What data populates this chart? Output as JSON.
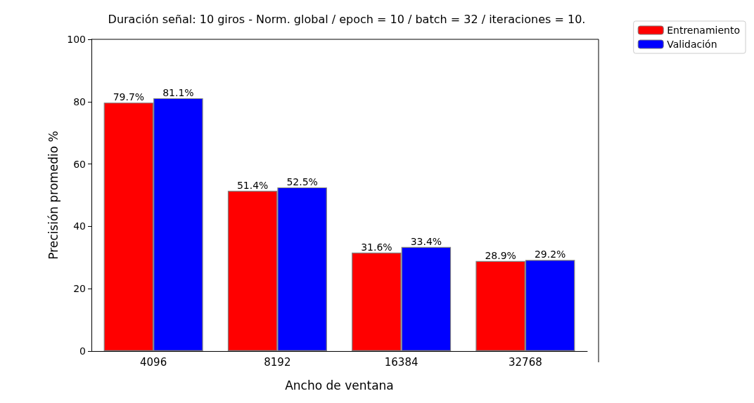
{
  "chart_data": {
    "type": "bar",
    "title": "Duración señal: 10 giros - Norm. global / epoch = 10 / batch = 32 / iteraciones = 10.",
    "xlabel": "Ancho de ventana",
    "ylabel": "Precisión promedio %",
    "categories": [
      "4096",
      "8192",
      "16384",
      "32768"
    ],
    "series": [
      {
        "name": "Entrenamiento",
        "color": "#ff0000",
        "values": [
          79.7,
          51.4,
          31.6,
          28.9
        ],
        "value_labels": [
          "79.7%",
          "51.4%",
          "31.6%",
          "28.9%"
        ]
      },
      {
        "name": "Validación",
        "color": "#0000ff",
        "values": [
          81.1,
          52.5,
          33.4,
          29.2
        ],
        "value_labels": [
          "81.1%",
          "52.5%",
          "33.4%",
          "29.2%"
        ]
      }
    ],
    "ylim": [
      0,
      100
    ],
    "yticks": [
      0,
      20,
      40,
      60,
      80,
      100
    ],
    "grid": false,
    "legend": "top right"
  }
}
